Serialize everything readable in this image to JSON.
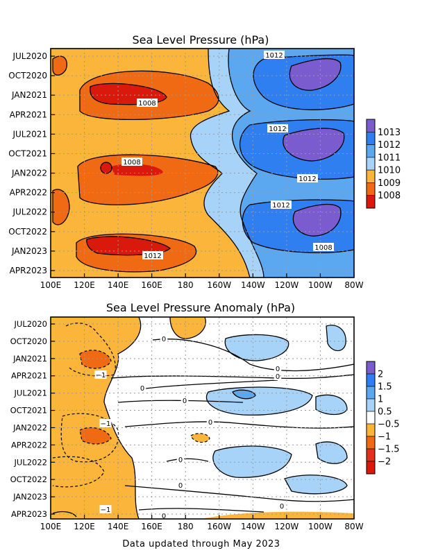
{
  "footer": "Data updated through May 2023",
  "chart_data": [
    {
      "type": "heatmap",
      "title": "Sea Level Pressure (hPa)",
      "x_ticks": [
        "100E",
        "120E",
        "140E",
        "160E",
        "180",
        "160W",
        "140W",
        "120W",
        "100W",
        "80W"
      ],
      "y_ticks": [
        "JUL2020",
        "OCT2020",
        "JAN2021",
        "APR2021",
        "JUL2021",
        "OCT2021",
        "JAN2022",
        "APR2022",
        "JUL2022",
        "OCT2022",
        "JAN2023",
        "APR2023"
      ],
      "colorbar": {
        "labels": [
          "1013",
          "1012",
          "1011",
          "1010",
          "1009",
          "1008"
        ],
        "colors": [
          "#7b5ccf",
          "#2f7ff0",
          "#5ca8f0",
          "#a6d3f7",
          "#fbb53a",
          "#f06a13",
          "#d8190c"
        ]
      },
      "contour_labels": [
        "1012",
        "1008",
        "1012",
        "1008",
        "1012",
        "1012",
        "1008",
        "1012"
      ],
      "grid": true
    },
    {
      "type": "heatmap",
      "title": "Sea Level Pressure Anomaly (hPa)",
      "x_ticks": [
        "100E",
        "120E",
        "140E",
        "160E",
        "180",
        "160W",
        "140W",
        "120W",
        "100W",
        "80W"
      ],
      "y_ticks": [
        "JUL2020",
        "OCT2020",
        "JAN2021",
        "APR2021",
        "JUL2021",
        "OCT2021",
        "JAN2022",
        "APR2022",
        "JUL2022",
        "OCT2022",
        "JAN2023",
        "APR2023"
      ],
      "colorbar": {
        "labels": [
          "2",
          "1.5",
          "1",
          "0.5",
          "−0.5",
          "−1",
          "−1.5",
          "−2"
        ],
        "colors": [
          "#7b5ccf",
          "#2f7ff0",
          "#5ca8f0",
          "#a6d3f7",
          "#ffffff",
          "#fbb53a",
          "#f06a13",
          "#e0321a",
          "#d8190c"
        ]
      },
      "contour_labels": [
        "0",
        "−1",
        "0",
        "0",
        "0",
        "0",
        "−1",
        "0",
        "0",
        "0",
        "−1",
        "0",
        "0"
      ],
      "grid": true
    }
  ]
}
